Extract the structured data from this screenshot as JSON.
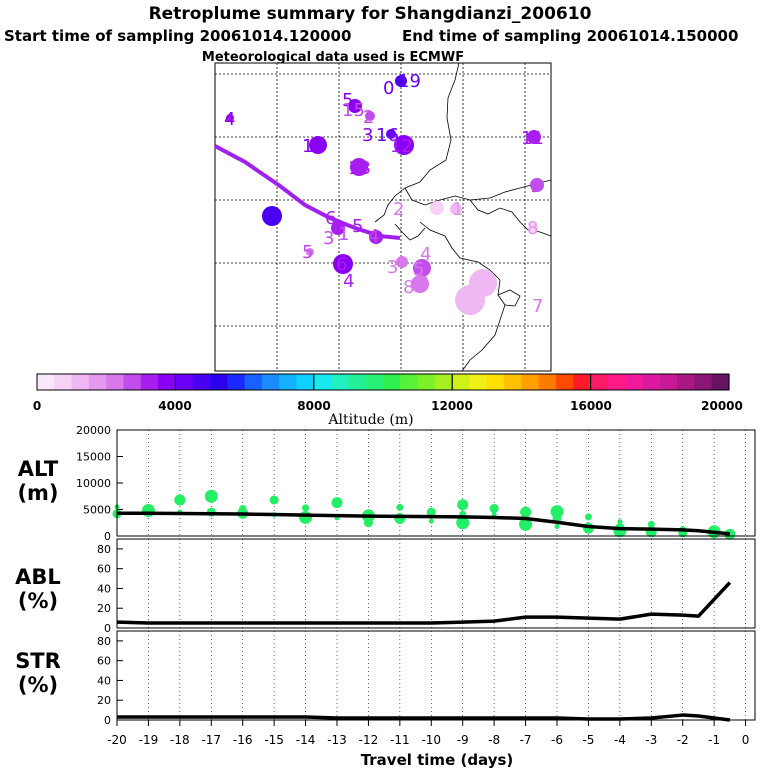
{
  "header": {
    "title": "Retroplume summary for Shangdianzi_200610",
    "start_label": "Start time of sampling 20061014.120000",
    "end_label": "End time of sampling 20061014.150000",
    "met_label": "Meteorological data used is ECMWF"
  },
  "colors": {
    "plume_line": "#a020f0",
    "alt_points": "#22ee66",
    "curve": "#000000"
  },
  "colorbar": {
    "ticks": [
      "0",
      "4000",
      "8000",
      "12000",
      "16000",
      "20000"
    ],
    "label": "Altitude (m)",
    "swatches": [
      "#fbe7fb",
      "#f6d2f7",
      "#f0b8f3",
      "#e598ef",
      "#d878ec",
      "#c24ded",
      "#a81df0",
      "#8a00f5",
      "#6a00f8",
      "#4a00f2",
      "#2c00ee",
      "#1a2aff",
      "#1a60ff",
      "#1a8cff",
      "#12b0ff",
      "#10d0ff",
      "#18e8f0",
      "#22f0c0",
      "#24f09a",
      "#28f078",
      "#30f050",
      "#58f038",
      "#7ef028",
      "#a6f020",
      "#d0f018",
      "#f0f018",
      "#ffe000",
      "#ffc000",
      "#ffa000",
      "#ff7a00",
      "#ff4800",
      "#ff1a2a",
      "#ff1a66",
      "#ff1a88",
      "#f01a9a",
      "#dc1aa0",
      "#c81a96",
      "#aa1886",
      "#8a1676",
      "#681262"
    ]
  },
  "map": {
    "labels": [
      {
        "t": "19",
        "c": "#6a00f8",
        "p": "pt-19"
      },
      {
        "t": "0",
        "c": "#6a00f8",
        "p": "pt-0"
      },
      {
        "t": "4",
        "c": "#8a00f5",
        "p": "pt-4a"
      },
      {
        "t": "5",
        "c": "#8a00f5",
        "p": "pt-5a"
      },
      {
        "t": "15",
        "c": "#c24ded",
        "p": "pt-15"
      },
      {
        "t": "2",
        "c": "#c24ded",
        "p": "pt-2a"
      },
      {
        "t": "3",
        "c": "#8a00f5",
        "p": "pt-3a"
      },
      {
        "t": "16",
        "c": "#6a00f8",
        "p": "pt-16"
      },
      {
        "t": "12",
        "c": "#a81df0",
        "p": "pt-12"
      },
      {
        "t": "14",
        "c": "#8a00f5",
        "p": "pt-14"
      },
      {
        "t": "13",
        "c": "#a81df0",
        "p": "pt-13"
      },
      {
        "t": "11",
        "c": "#a81df0",
        "p": "pt-11"
      },
      {
        "t": "9",
        "c": "#c24ded",
        "p": "pt-9"
      },
      {
        "t": "7",
        "c": "#4a00f2",
        "p": "pt-7a"
      },
      {
        "t": "6",
        "c": "#a81df0",
        "p": "pt-6a"
      },
      {
        "t": "5",
        "c": "#a81df0",
        "p": "pt-5b"
      },
      {
        "t": "1",
        "c": "#c24ded",
        "p": "pt-1a"
      },
      {
        "t": "4",
        "c": "#c24ded",
        "p": "pt-4b"
      },
      {
        "t": "2",
        "c": "#d878ec",
        "p": "pt-2b"
      },
      {
        "t": "1",
        "c": "#e598ef",
        "p": "pt-1b"
      },
      {
        "t": "8",
        "c": "#e598ef",
        "p": "pt-8a"
      },
      {
        "t": "5",
        "c": "#c24ded",
        "p": "pt-5c"
      },
      {
        "t": "3",
        "c": "#c24ded",
        "p": "pt-3b"
      },
      {
        "t": "6",
        "c": "#a81df0",
        "p": "pt-6b"
      },
      {
        "t": "4",
        "c": "#a81df0",
        "p": "pt-4c"
      },
      {
        "t": "3",
        "c": "#d878ec",
        "p": "pt-3c"
      },
      {
        "t": "5",
        "c": "#d878ec",
        "p": "pt-5d"
      },
      {
        "t": "4",
        "c": "#d878ec",
        "p": "pt-4d"
      },
      {
        "t": "8",
        "c": "#d878ec",
        "p": "pt-8b"
      },
      {
        "t": "7",
        "c": "#d878ec",
        "p": "pt-7b"
      },
      {
        "t": "4",
        "c": "#f0b8f3",
        "p": "pt-4e"
      },
      {
        "t": "6",
        "c": "#f0b8f3",
        "p": "pt-6c"
      },
      {
        "t": "7",
        "c": "#d878ec",
        "p": "pt-7c"
      }
    ]
  },
  "chart_data": [
    {
      "type": "line",
      "title": "ALT (m)",
      "xlabel": "Travel time (days)",
      "ylabel": "ALT (m)",
      "ylim": [
        0,
        20000
      ],
      "yticks": [
        "0",
        "5000",
        "10000",
        "15000",
        "20000"
      ],
      "x": [
        -20,
        -19,
        -18,
        -17,
        -16,
        -15,
        -14,
        -13,
        -12,
        -11,
        -10,
        -9,
        -8,
        -7,
        -6,
        -5,
        -4,
        -3,
        -2,
        -1.5,
        -0.5
      ],
      "series": [
        {
          "name": "mean altitude",
          "values": [
            4300,
            4300,
            4250,
            4200,
            4150,
            4050,
            3950,
            3850,
            3750,
            3700,
            3650,
            3600,
            3500,
            3300,
            2600,
            1800,
            1400,
            1300,
            1150,
            1000,
            400
          ]
        }
      ],
      "scatter": {
        "name": "plume clusters",
        "x": [
          -20,
          -20,
          -19,
          -19,
          -18,
          -18,
          -17,
          -17,
          -16,
          -16,
          -15,
          -15,
          -14,
          -14,
          -13,
          -13,
          -12,
          -12,
          -11,
          -11,
          -10,
          -10,
          -9,
          -9,
          -9,
          -8,
          -8,
          -7,
          -7,
          -7,
          -6,
          -6,
          -6,
          -5,
          -5,
          -4,
          -4,
          -4,
          -3,
          -3,
          -2,
          -2,
          -1,
          -1,
          -0.5
        ],
        "y": [
          5500,
          4200,
          4800,
          4500,
          6800,
          4500,
          4500,
          7500,
          5200,
          4300,
          4000,
          6800,
          3500,
          5300,
          6300,
          3400,
          2500,
          3800,
          5400,
          3300,
          2800,
          4500,
          2500,
          4100,
          5900,
          4100,
          5200,
          2200,
          3800,
          4500,
          1800,
          3200,
          4600,
          3600,
          1500,
          2700,
          1600,
          1000,
          2200,
          800,
          1400,
          600,
          800,
          400,
          300
        ]
      }
    },
    {
      "type": "line",
      "title": "ABL (%)",
      "xlabel": "Travel time (days)",
      "ylabel": "ABL (%)",
      "ylim": [
        0,
        90
      ],
      "yticks": [
        "0",
        "20",
        "40",
        "60",
        "80"
      ],
      "x": [
        -20,
        -19,
        -18,
        -17,
        -16,
        -15,
        -14,
        -13,
        -12,
        -11,
        -10,
        -9,
        -8,
        -7,
        -6,
        -5,
        -4,
        -3,
        -2,
        -1.5,
        -0.5
      ],
      "series": [
        {
          "name": "fraction in ABL",
          "values": [
            6,
            5,
            5,
            5,
            5,
            5,
            5,
            5,
            5,
            5,
            5,
            6,
            7,
            11,
            11,
            10,
            9,
            14,
            13,
            12,
            46
          ]
        }
      ]
    },
    {
      "type": "line",
      "title": "STR (%)",
      "xlabel": "Travel time (days)",
      "ylabel": "STR (%)",
      "ylim": [
        0,
        90
      ],
      "yticks": [
        "0",
        "20",
        "40",
        "60",
        "80"
      ],
      "x": [
        -20,
        -19,
        -18,
        -17,
        -16,
        -15,
        -14,
        -13,
        -12,
        -11,
        -10,
        -9,
        -8,
        -7,
        -6,
        -5,
        -4,
        -3,
        -2,
        -1.5,
        -0.5
      ],
      "series": [
        {
          "name": "fraction in stratosphere",
          "values": [
            3,
            3,
            3,
            3,
            3,
            3,
            3,
            2,
            2,
            2,
            2,
            2,
            2,
            2,
            2,
            1,
            1,
            2,
            5,
            4,
            0
          ]
        }
      ]
    }
  ],
  "axes": {
    "xticks": [
      "-20",
      "-19",
      "-18",
      "-17",
      "-16",
      "-15",
      "-14",
      "-13",
      "-12",
      "-11",
      "-10",
      "-9",
      "-8",
      "-7",
      "-6",
      "-5",
      "-4",
      "-3",
      "-2",
      "-1",
      "0"
    ],
    "alt_label_line1": "ALT",
    "alt_label_line2": "(m)",
    "abl_label_line1": "ABL",
    "abl_label_line2": "(%)",
    "str_label_line1": "STR",
    "str_label_line2": "(%)",
    "xlabel": "Travel time (days)"
  }
}
